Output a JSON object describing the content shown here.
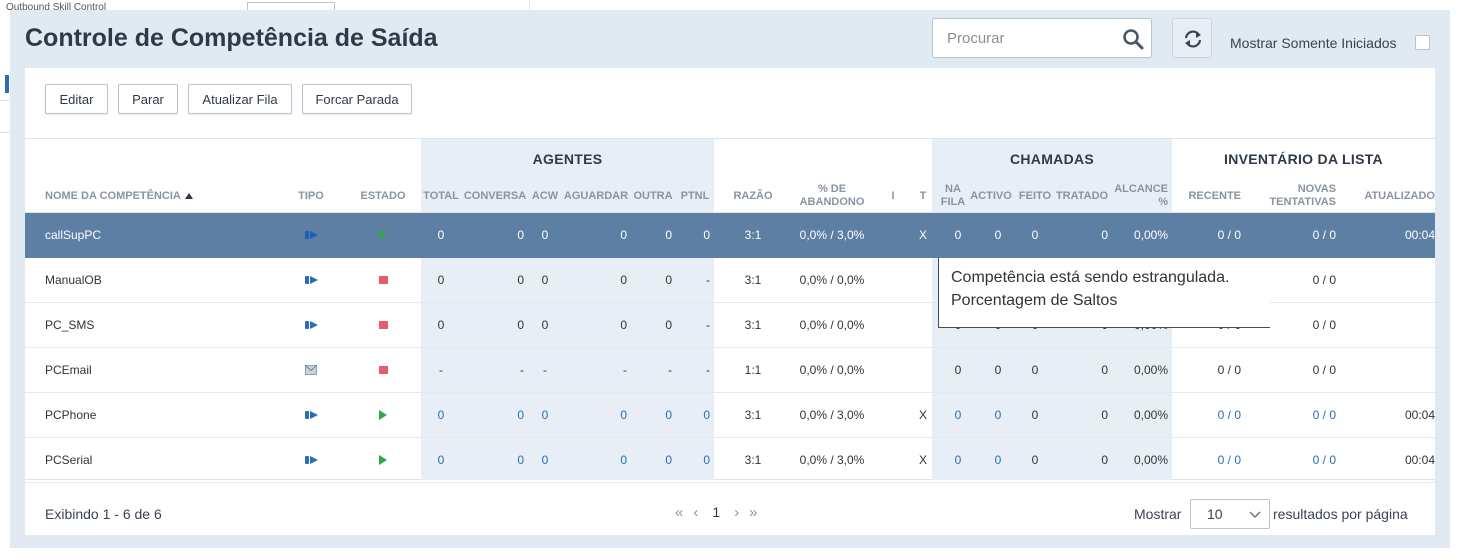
{
  "background_window": {
    "title": "Outbound Skill Control",
    "field": ""
  },
  "page": {
    "title": "Controle de Competência de Saída"
  },
  "search": {
    "placeholder": "Procurar"
  },
  "toolbar": {
    "show_only_started": "Mostrar Somente Iniciados",
    "buttons": [
      "Editar",
      "Parar",
      "Atualizar Fila",
      "Forcar Parada"
    ]
  },
  "table": {
    "groups": {
      "agents": "AGENTES",
      "calls": "CHAMADAS",
      "inventory": "INVENTÁRIO DA LISTA"
    },
    "headers": {
      "name": "NOME DA COMPETÊNCIA",
      "type": "TIPO",
      "state": "ESTADO",
      "total": "TOTAL",
      "conversa": "CONVERSA",
      "acw": "ACW",
      "aguardar": "AGUARDAR",
      "outra": "OUTRA",
      "ptnl": "PTNL",
      "razao": "RAZÃO",
      "abandono_1": "% DE",
      "abandono_2": "ABANDONO",
      "i": "I",
      "t": "T",
      "na_fila_1": "NA",
      "na_fila_2": "FILA",
      "activo": "ACTIVO",
      "feito": "FEITO",
      "tratado": "TRATADO",
      "alcance_1": "ALCANCE",
      "alcance_2": "%",
      "recente": "RECENTE",
      "novas_1": "NOVAS",
      "novas_2": "TENTATIVAS",
      "atualizado": "ATUALIZADO"
    },
    "rows": [
      {
        "name": "callSupPC",
        "type_icon": "phone-outbound-icon",
        "state_icon": "play-icon",
        "total": "0",
        "conversa": "0",
        "acw": "0",
        "aguardar": "0",
        "outra": "0",
        "ptnl": "0",
        "razao": "3:1",
        "abandono": "0,0% / 3,0%",
        "i": "",
        "t": "X",
        "na_fila": "0",
        "activo": "0",
        "feito": "0",
        "tratado": "0",
        "alcance": "0,00%",
        "recente": "0 / 0",
        "novas": "0 / 0",
        "atualizado": "00:04"
      },
      {
        "name": "ManualOB",
        "type_icon": "phone-outbound-icon",
        "state_icon": "stop-icon",
        "total": "0",
        "conversa": "0",
        "acw": "0",
        "aguardar": "0",
        "outra": "0",
        "ptnl": "-",
        "razao": "3:1",
        "abandono": "0,0% / 0,0%",
        "i": "",
        "t": "",
        "na_fila": "",
        "activo": "",
        "feito": "",
        "tratado": "",
        "alcance": "",
        "recente": "",
        "novas": "0 / 0",
        "atualizado": ""
      },
      {
        "name": "PC_SMS",
        "type_icon": "phone-outbound-icon",
        "state_icon": "stop-icon",
        "total": "0",
        "conversa": "0",
        "acw": "0",
        "aguardar": "0",
        "outra": "0",
        "ptnl": "-",
        "razao": "3:1",
        "abandono": "0,0% / 0,0%",
        "i": "",
        "t": "",
        "na_fila": "0",
        "activo": "0",
        "feito": "0",
        "tratado": "0",
        "alcance": "0,00%",
        "recente": "0 / 0",
        "novas": "0 / 0",
        "atualizado": ""
      },
      {
        "name": "PCEmail",
        "type_icon": "email-icon",
        "state_icon": "stop-icon",
        "total": "-",
        "conversa": "-",
        "acw": "-",
        "aguardar": "-",
        "outra": "-",
        "ptnl": "-",
        "razao": "1:1",
        "abandono": "0,0% / 0,0%",
        "i": "",
        "t": "",
        "na_fila": "0",
        "activo": "0",
        "feito": "0",
        "tratado": "0",
        "alcance": "0,00%",
        "recente": "0 / 0",
        "novas": "0 / 0",
        "atualizado": ""
      },
      {
        "name": "PCPhone",
        "type_icon": "phone-outbound-icon",
        "state_icon": "play-icon",
        "total": "0",
        "conversa": "0",
        "acw": "0",
        "aguardar": "0",
        "outra": "0",
        "ptnl": "0",
        "razao": "3:1",
        "abandono": "0,0% / 3,0%",
        "i": "",
        "t": "X",
        "na_fila": "0",
        "activo": "0",
        "feito": "0",
        "tratado": "0",
        "alcance": "0,00%",
        "recente": "0 / 0",
        "novas": "0 / 0",
        "atualizado": "00:04"
      },
      {
        "name": "PCSerial",
        "type_icon": "phone-outbound-icon",
        "state_icon": "play-icon",
        "total": "0",
        "conversa": "0",
        "acw": "0",
        "aguardar": "0",
        "outra": "0",
        "ptnl": "0",
        "razao": "3:1",
        "abandono": "0,0% / 3,0%",
        "i": "",
        "t": "X",
        "na_fila": "0",
        "activo": "0",
        "feito": "0",
        "tratado": "0",
        "alcance": "0,00%",
        "recente": "0 / 0",
        "novas": "0 / 0",
        "atualizado": "00:04"
      }
    ]
  },
  "tooltip": {
    "line1": "Competência está sendo estrangulada.",
    "line2": "Porcentagem de Saltos"
  },
  "footer": {
    "showing": "Exibindo 1 - 6 de 6",
    "current_page": "1",
    "show_label": "Mostrar",
    "page_size": "10",
    "per_page_label": "resultados por página"
  },
  "colors": {
    "selected_row": "#5d7fa4",
    "link": "#2a6db8",
    "play": "#2fa84a",
    "stop": "#e85c6a",
    "band": "#e8eef5"
  }
}
